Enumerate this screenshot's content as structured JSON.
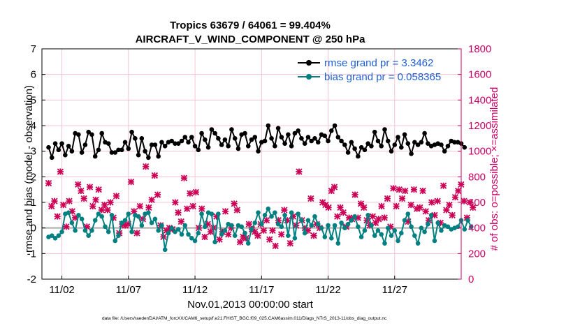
{
  "chart_data": {
    "type": "line",
    "title": "Tropics 63679 / 64061 = 99.404%",
    "subtitle": "AIRCRAFT_V_WIND_COMPONENT @ 250 hPa",
    "xlabel": "Nov.01,2013 00:00:00 start",
    "ylabel_left": "rmse and bias (model - observation)",
    "ylabel_right": "# of obs: o=possible; ×=assimilated",
    "ylim_left": [
      -2,
      7
    ],
    "ylim_right": [
      0,
      1800
    ],
    "xlim": [
      0.5,
      32.0
    ],
    "x_tick_labels": [
      "11/02",
      "11/07",
      "11/12",
      "11/17",
      "11/22",
      "11/27"
    ],
    "x_tick_values": [
      2,
      7,
      12,
      17,
      22,
      27
    ],
    "y_ticks_left": [
      "-2",
      "-1",
      "0",
      "1",
      "2",
      "3",
      "4",
      "5",
      "6",
      "7"
    ],
    "y_ticks_right": [
      "0",
      "200",
      "400",
      "600",
      "800",
      "1000",
      "1200",
      "1400",
      "1600",
      "1800"
    ],
    "grid": true,
    "legend_position": "top-right",
    "colors": {
      "rmse": "#000000",
      "bias": "#008080",
      "obs": "#cc0055",
      "grid": "#f0b8cc",
      "zero": "#aaaaaa",
      "legend_text": "#1f5fd6"
    },
    "x_step_days": 0.25,
    "series": [
      {
        "name": "rmse grand pr = 3.3462",
        "axis": "left",
        "values": [
          3.15,
          2.75,
          3.3,
          3.05,
          3.3,
          2.85,
          3.2,
          3.0,
          3.7,
          3.65,
          2.95,
          3.25,
          3.75,
          3.65,
          2.8,
          3.05,
          3.7,
          3.35,
          3.3,
          2.95,
          2.95,
          3.05,
          3.05,
          3.35,
          3.1,
          3.75,
          3.5,
          2.85,
          3.5,
          3.0,
          2.75,
          3.25,
          3.25,
          2.8,
          3.35,
          3.2,
          3.35,
          3.4,
          3.3,
          3.3,
          3.4,
          3.55,
          3.35,
          3.55,
          3.2,
          3.05,
          3.7,
          3.45,
          3.15,
          3.85,
          3.7,
          3.5,
          3.25,
          3.45,
          3.2,
          3.85,
          3.5,
          3.1,
          3.65,
          3.7,
          3.2,
          3.45,
          3.55,
          3.0,
          3.35,
          3.4,
          4.0,
          3.5,
          3.2,
          3.9,
          3.55,
          3.3,
          3.65,
          3.2,
          3.7,
          3.8,
          3.5,
          3.3,
          3.55,
          3.4,
          3.5,
          3.35,
          3.65,
          3.6,
          3.4,
          3.8,
          4.0,
          3.55,
          3.4,
          3.25,
          2.95,
          3.35,
          3.1,
          2.8,
          3.15,
          3.05,
          3.3,
          3.2,
          3.75,
          3.4,
          3.2,
          3.85,
          3.4,
          3.0,
          3.25,
          3.55,
          3.15,
          3.65,
          3.3,
          2.9,
          3.35,
          3.25,
          3.35,
          3.7,
          3.3,
          3.2,
          3.25,
          3.3,
          3.25,
          3.0,
          3.2,
          3.4,
          3.35,
          3.35,
          3.3,
          3.15
        ]
      },
      {
        "name": "bias grand pr = 0.058365",
        "axis": "left",
        "values": [
          -0.35,
          -0.3,
          -0.4,
          -0.3,
          -0.15,
          0.55,
          0.6,
          0.2,
          -0.1,
          0.5,
          0.35,
          -0.1,
          -0.3,
          -0.1,
          0.3,
          0.55,
          0.45,
          0.05,
          -0.15,
          0.5,
          -0.5,
          -0.3,
          0.2,
          0.3,
          0.55,
          -0.15,
          0.5,
          0.45,
          0.1,
          0.55,
          0.6,
          0.2,
          0.35,
          -0.1,
          0.1,
          -0.85,
          -0.2,
          0.0,
          -0.15,
          -0.05,
          -0.25,
          0.1,
          -0.25,
          -0.4,
          -0.5,
          -0.2,
          0.55,
          0.05,
          0.6,
          0.55,
          -0.55,
          0.55,
          -0.25,
          -0.1,
          0.15,
          0.1,
          -0.3,
          0.1,
          0.05,
          -0.2,
          -0.6,
          -0.05,
          0.2,
          0.6,
          0.15,
          0.5,
          0.75,
          0.45,
          0.6,
          0.15,
          0.05,
          0.5,
          -0.3,
          0.6,
          -0.4,
          0.55,
          0.3,
          -0.2,
          0.3,
          0.1,
          0.45,
          0.15,
          0.0,
          -0.35,
          0.1,
          -0.4,
          0.1,
          -0.6,
          0.2,
          0.0,
          0.15,
          0.3,
          0.45,
          0.05,
          -0.35,
          -0.1,
          0.5,
          0.1,
          -0.3,
          -0.1,
          -0.25,
          -0.6,
          0.0,
          -0.3,
          -0.1,
          -0.5,
          -0.2,
          0.3,
          0.55,
          0.05,
          -0.3,
          -0.6,
          0.0,
          -0.15,
          0.15,
          0.5,
          -0.5,
          0.2,
          -0.1,
          0.1,
          0.05,
          -0.05,
          0.0,
          0.05,
          0.3,
          -0.05,
          0.3,
          0.05
        ]
      },
      {
        "name": "obs",
        "axis": "right",
        "marker": "x",
        "values": [
          750,
          570,
          610,
          490,
          840,
          580,
          410,
          610,
          530,
          480,
          740,
          690,
          630,
          410,
          720,
          570,
          620,
          700,
          540,
          580,
          540,
          600,
          480,
          650,
          360,
          430,
          420,
          430,
          760,
          530,
          360,
          570,
          470,
          880,
          560,
          620,
          810,
          660,
          420,
          330,
          380,
          400,
          390,
          600,
          520,
          450,
          790,
          550,
          670,
          570,
          680,
          400,
          550,
          330,
          430,
          370,
          400,
          490,
          310,
          370,
          530,
          350,
          400,
          590,
          540,
          290,
          330,
          320,
          430,
          390,
          370,
          340,
          430,
          380,
          460,
          310,
          380,
          260,
          460,
          350,
          540,
          460,
          280,
          490,
          420,
          840,
          460,
          400,
          380,
          630,
          340,
          430,
          400,
          600,
          580,
          560,
          690,
          720,
          490,
          560,
          520,
          410,
          480,
          470,
          660,
          480,
          590,
          560,
          460,
          420,
          490,
          440,
          470,
          570,
          480,
          630,
          410,
          710,
          570,
          700,
          630,
          690,
          450,
          580,
          700,
          550,
          560,
          690,
          530,
          460,
          600,
          500,
          610,
          440,
          730,
          540,
          580,
          500,
          640,
          690,
          740,
          610,
          480,
          600,
          560
        ]
      }
    ],
    "legend": [
      {
        "label": "rmse grand pr = 3.3462",
        "series": "rmse"
      },
      {
        "label": "bias grand pr = 0.058365",
        "series": "bias"
      }
    ]
  },
  "footnote": "data file: /Users/raeder/DAI/ATM_forcXX/CAM6_setup/f.e21.FHIST_BGC.f09_025.CAM6assim.011/Diags_NTrS_2013-11/obs_diag_output.nc"
}
